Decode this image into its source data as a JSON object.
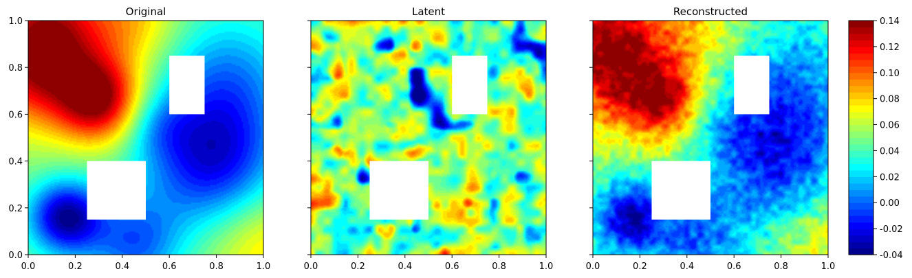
{
  "chart_data": {
    "type": "heatmap",
    "colormap": "jet",
    "x_range": [
      0.0,
      1.0
    ],
    "y_range": [
      0.0,
      1.0
    ],
    "x_ticks": [
      "0.0",
      "0.2",
      "0.4",
      "0.6",
      "0.8",
      "1.0"
    ],
    "y_ticks": [
      "0.0",
      "0.2",
      "0.4",
      "0.6",
      "0.8",
      "1.0"
    ],
    "colorbar": {
      "range": [
        -0.04,
        0.14
      ],
      "ticks": [
        "0.14",
        "0.12",
        "0.10",
        "0.08",
        "0.06",
        "0.04",
        "0.02",
        "0.00",
        "-0.02",
        "-0.04"
      ]
    },
    "masked_regions": [
      {
        "x": [
          0.25,
          0.5
        ],
        "y": [
          0.15,
          0.4
        ]
      },
      {
        "x": [
          0.6,
          0.75
        ],
        "y": [
          0.6,
          0.85
        ]
      }
    ],
    "panels": [
      {
        "title": "Original",
        "field": "smooth",
        "features": [
          {
            "kind": "max",
            "x": 0.3,
            "y": 0.66,
            "value": 0.14
          },
          {
            "kind": "high",
            "x": 0.0,
            "y": 0.8,
            "value": 0.12
          },
          {
            "kind": "high",
            "x": 0.1,
            "y": 1.0,
            "value": 0.12
          },
          {
            "kind": "min",
            "x": 0.16,
            "y": 0.16,
            "value": -0.04
          },
          {
            "kind": "low",
            "x": 0.78,
            "y": 0.4,
            "value": -0.03
          },
          {
            "kind": "low",
            "x": 0.45,
            "y": 0.05,
            "value": -0.02
          }
        ]
      },
      {
        "title": "Latent",
        "field": "noise",
        "features": [
          {
            "kind": "mean",
            "value": 0.05
          }
        ]
      },
      {
        "title": "Reconstructed",
        "field": "noisy_smooth",
        "features": [
          {
            "kind": "max",
            "x": 0.2,
            "y": 0.7,
            "value": 0.13
          },
          {
            "kind": "low",
            "x": 0.15,
            "y": 0.2,
            "value": -0.025
          },
          {
            "kind": "low",
            "x": 0.75,
            "y": 0.35,
            "value": -0.02
          }
        ]
      }
    ]
  }
}
